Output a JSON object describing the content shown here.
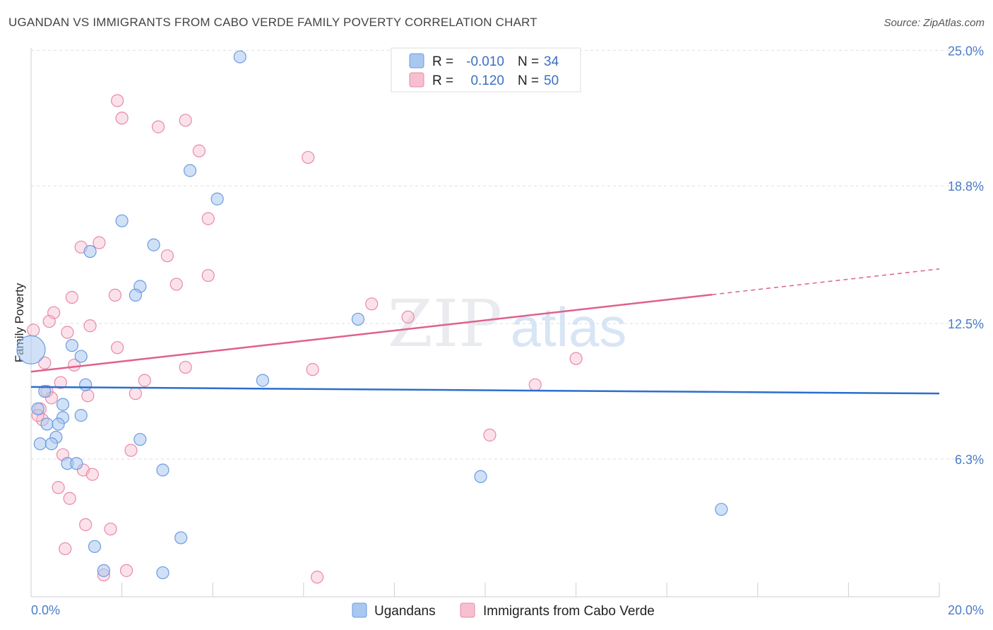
{
  "chart_data": {
    "type": "scatter",
    "title": "UGANDAN VS IMMIGRANTS FROM CABO VERDE FAMILY POVERTY CORRELATION CHART",
    "source": "Source: ZipAtlas.com",
    "ylabel": "Family Poverty",
    "xlabel": "",
    "xlim": [
      0,
      20
    ],
    "ylim": [
      0,
      25.3
    ],
    "x_tick_labels": [
      "0.0%",
      "20.0%"
    ],
    "y_ticks": [
      {
        "value": 25.0,
        "label": "25.0%"
      },
      {
        "value": 18.8,
        "label": "18.8%"
      },
      {
        "value": 12.5,
        "label": "12.5%"
      },
      {
        "value": 6.3,
        "label": "6.3%"
      }
    ],
    "watermark": {
      "part1": "ZIP",
      "part2": "atlas"
    },
    "legend_top": [
      {
        "r_label": "R =",
        "r_value": "-0.010",
        "n_label": "N =",
        "n_value": "34"
      },
      {
        "r_label": "R =",
        "r_value": "0.120",
        "n_label": "N =",
        "n_value": "50"
      }
    ],
    "series": [
      {
        "name": "Ugandans",
        "color": "#a9c8f0",
        "stroke": "#6b9be0",
        "line_color": "#2a6fcc",
        "trend": {
          "x0": 0,
          "y0": 9.6,
          "x1": 20,
          "y1": 9.3,
          "dashed_from": null
        },
        "points": [
          [
            4.6,
            24.7
          ],
          [
            3.5,
            19.5
          ],
          [
            4.1,
            18.2
          ],
          [
            2.0,
            17.2
          ],
          [
            2.7,
            16.1
          ],
          [
            1.3,
            15.8
          ],
          [
            2.4,
            14.2
          ],
          [
            2.3,
            13.8
          ],
          [
            7.2,
            12.7
          ],
          [
            0.9,
            11.5
          ],
          [
            1.1,
            11.0
          ],
          [
            0.0,
            11.3
          ],
          [
            1.2,
            9.7
          ],
          [
            5.1,
            9.9
          ],
          [
            0.3,
            9.4
          ],
          [
            0.7,
            8.8
          ],
          [
            0.15,
            8.6
          ],
          [
            1.1,
            8.3
          ],
          [
            0.7,
            8.2
          ],
          [
            0.35,
            7.9
          ],
          [
            0.6,
            7.9
          ],
          [
            0.55,
            7.3
          ],
          [
            2.4,
            7.2
          ],
          [
            0.2,
            7.0
          ],
          [
            0.45,
            7.0
          ],
          [
            0.8,
            6.1
          ],
          [
            1.0,
            6.1
          ],
          [
            2.9,
            5.8
          ],
          [
            9.9,
            5.5
          ],
          [
            15.2,
            4.0
          ],
          [
            3.3,
            2.7
          ],
          [
            1.4,
            2.3
          ],
          [
            1.6,
            1.2
          ],
          [
            2.9,
            1.1
          ]
        ]
      },
      {
        "name": "Immigrants from Cabo Verde",
        "color": "#f7bfd0",
        "stroke": "#e889a8",
        "line_color": "#e0608c",
        "trend": {
          "x0": 0,
          "y0": 10.3,
          "x1": 20,
          "y1": 15.0,
          "dashed_from": 15.0
        },
        "points": [
          [
            1.9,
            22.7
          ],
          [
            2.0,
            21.9
          ],
          [
            2.8,
            21.5
          ],
          [
            3.4,
            21.8
          ],
          [
            3.7,
            20.4
          ],
          [
            6.1,
            20.1
          ],
          [
            3.9,
            17.3
          ],
          [
            1.5,
            16.2
          ],
          [
            1.1,
            16.0
          ],
          [
            3.0,
            15.6
          ],
          [
            3.9,
            14.7
          ],
          [
            3.2,
            14.3
          ],
          [
            1.85,
            13.8
          ],
          [
            0.9,
            13.7
          ],
          [
            7.5,
            13.4
          ],
          [
            0.5,
            13.0
          ],
          [
            0.4,
            12.6
          ],
          [
            8.3,
            12.8
          ],
          [
            1.3,
            12.4
          ],
          [
            0.8,
            12.1
          ],
          [
            0.05,
            12.2
          ],
          [
            1.9,
            11.4
          ],
          [
            12.0,
            10.9
          ],
          [
            0.3,
            10.7
          ],
          [
            0.95,
            10.6
          ],
          [
            3.4,
            10.5
          ],
          [
            6.2,
            10.4
          ],
          [
            2.5,
            9.9
          ],
          [
            0.65,
            9.8
          ],
          [
            11.1,
            9.7
          ],
          [
            0.35,
            9.4
          ],
          [
            2.3,
            9.3
          ],
          [
            1.25,
            9.2
          ],
          [
            0.45,
            9.1
          ],
          [
            0.2,
            8.6
          ],
          [
            0.25,
            8.1
          ],
          [
            0.15,
            8.3
          ],
          [
            10.1,
            7.4
          ],
          [
            2.2,
            6.7
          ],
          [
            0.7,
            6.5
          ],
          [
            1.15,
            5.8
          ],
          [
            1.35,
            5.6
          ],
          [
            0.6,
            5.0
          ],
          [
            0.85,
            4.5
          ],
          [
            1.2,
            3.3
          ],
          [
            1.75,
            3.1
          ],
          [
            0.75,
            2.2
          ],
          [
            2.1,
            1.2
          ],
          [
            1.6,
            1.0
          ],
          [
            6.3,
            0.9
          ]
        ]
      }
    ]
  }
}
